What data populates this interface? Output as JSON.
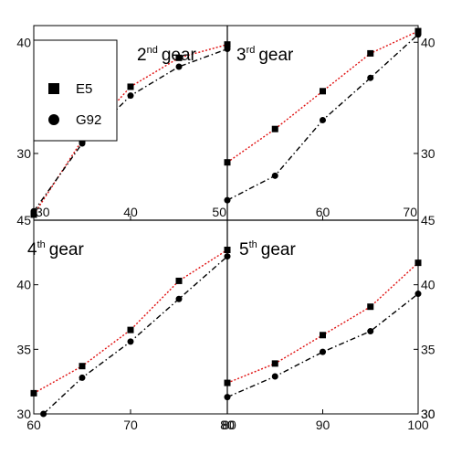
{
  "chart_data": [
    {
      "type": "line",
      "title_num": "2",
      "title_sup": "nd",
      "title_word": "gear",
      "x_ticks": [
        "30",
        "40",
        "50"
      ],
      "y_ticks": [
        "30",
        "40"
      ],
      "xlim": [
        30,
        50
      ],
      "ylim": [
        24,
        41.5
      ],
      "series": [
        {
          "name": "E5",
          "x": [
            30,
            35,
            40,
            45,
            50
          ],
          "y": [
            24.5,
            31.2,
            36.0,
            38.6,
            39.8
          ]
        },
        {
          "name": "G92",
          "x": [
            30,
            35,
            40,
            45,
            50
          ],
          "y": [
            24.8,
            30.9,
            35.2,
            37.8,
            39.4
          ]
        }
      ]
    },
    {
      "type": "line",
      "title_num": "3",
      "title_sup": "rd",
      "title_word": "gear",
      "x_ticks": [
        "60",
        "70"
      ],
      "y_ticks": [
        "30",
        "40"
      ],
      "xlim": [
        50,
        70
      ],
      "ylim": [
        24,
        41.5
      ],
      "series": [
        {
          "series_ref": "E5",
          "x": [
            50,
            55,
            60,
            65,
            70
          ],
          "y": [
            29.2,
            32.2,
            35.6,
            39.0,
            41.0
          ]
        },
        {
          "series_ref": "G92",
          "x": [
            50,
            55,
            60,
            65,
            70
          ],
          "y": [
            25.8,
            28.0,
            33.0,
            36.8,
            40.7
          ]
        }
      ]
    },
    {
      "type": "line",
      "title_num": "4",
      "title_sup": "th",
      "title_word": "gear",
      "x_ticks": [
        "60",
        "70",
        "80"
      ],
      "y_ticks": [
        "30",
        "35",
        "40"
      ],
      "xlim": [
        60,
        80
      ],
      "ylim": [
        30,
        45
      ],
      "series": [
        {
          "series_ref": "E5",
          "x": [
            60,
            65,
            70,
            75,
            80
          ],
          "y": [
            31.6,
            33.7,
            36.5,
            40.3,
            42.7
          ]
        },
        {
          "series_ref": "G92",
          "x": [
            61,
            65,
            70,
            75,
            80
          ],
          "y": [
            30.0,
            32.8,
            35.6,
            38.9,
            42.2
          ]
        }
      ]
    },
    {
      "type": "line",
      "title_num": "5",
      "title_sup": "th",
      "title_word": "gear",
      "x_ticks": [
        "80",
        "90",
        "100"
      ],
      "y_ticks": [
        "30",
        "35",
        "40"
      ],
      "xlim": [
        80,
        100
      ],
      "ylim": [
        30,
        45
      ],
      "series": [
        {
          "series_ref": "E5",
          "x": [
            80,
            85,
            90,
            95,
            100
          ],
          "y": [
            32.4,
            33.9,
            36.1,
            38.3,
            41.7
          ]
        },
        {
          "series_ref": "G92",
          "x": [
            80,
            85,
            90,
            95,
            100
          ],
          "y": [
            31.3,
            32.9,
            34.8,
            36.4,
            39.3
          ]
        }
      ]
    }
  ],
  "extra_tick_labels": {
    "left_45": "45",
    "right_45": "45",
    "right_30": "30",
    "bottom_mid_b": "80"
  },
  "legend": {
    "entries": [
      {
        "label": "E5",
        "marker": "square"
      },
      {
        "label": "G92",
        "marker": "circle"
      }
    ]
  },
  "colors": {
    "E5": "#e01010",
    "G92": "#000000",
    "markers": "#000000"
  }
}
